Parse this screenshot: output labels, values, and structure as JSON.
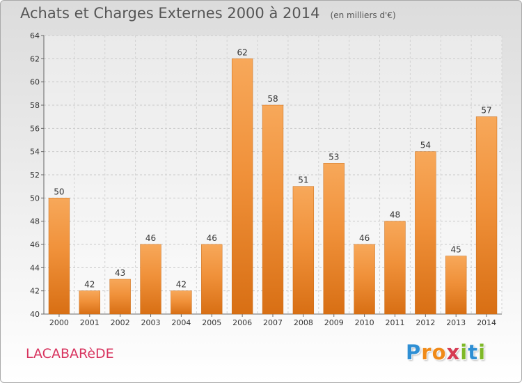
{
  "header": {
    "title": "Achats et Charges Externes 2000 à 2014",
    "subtitle": "(en milliers d'€)"
  },
  "footer": {
    "commune": "LACABARèDE",
    "brand": "Proxiti",
    "brand_letters": [
      "P",
      "r",
      "o",
      "x",
      "i",
      "t",
      "i"
    ],
    "brand_colors": [
      "#2e8fd4",
      "#f08a18",
      "#f08a18",
      "#d63a52",
      "#7fb928",
      "#2e8fd4",
      "#7fb928"
    ],
    "commune_color": "#d8345f"
  },
  "chart_data": {
    "type": "bar",
    "categories": [
      "2000",
      "2001",
      "2002",
      "2003",
      "2004",
      "2005",
      "2006",
      "2007",
      "2008",
      "2009",
      "2010",
      "2011",
      "2012",
      "2013",
      "2014"
    ],
    "values": [
      50,
      42,
      43,
      46,
      42,
      46,
      62,
      58,
      51,
      53,
      46,
      48,
      54,
      45,
      57
    ],
    "ylim": [
      40,
      64
    ],
    "yticks": [
      40,
      42,
      44,
      46,
      48,
      50,
      52,
      54,
      56,
      58,
      60,
      62,
      64
    ],
    "grid": true,
    "bar_color": "#f0913a",
    "bar_color_light": "#f7a85a",
    "bar_color_dark": "#d86f14"
  }
}
